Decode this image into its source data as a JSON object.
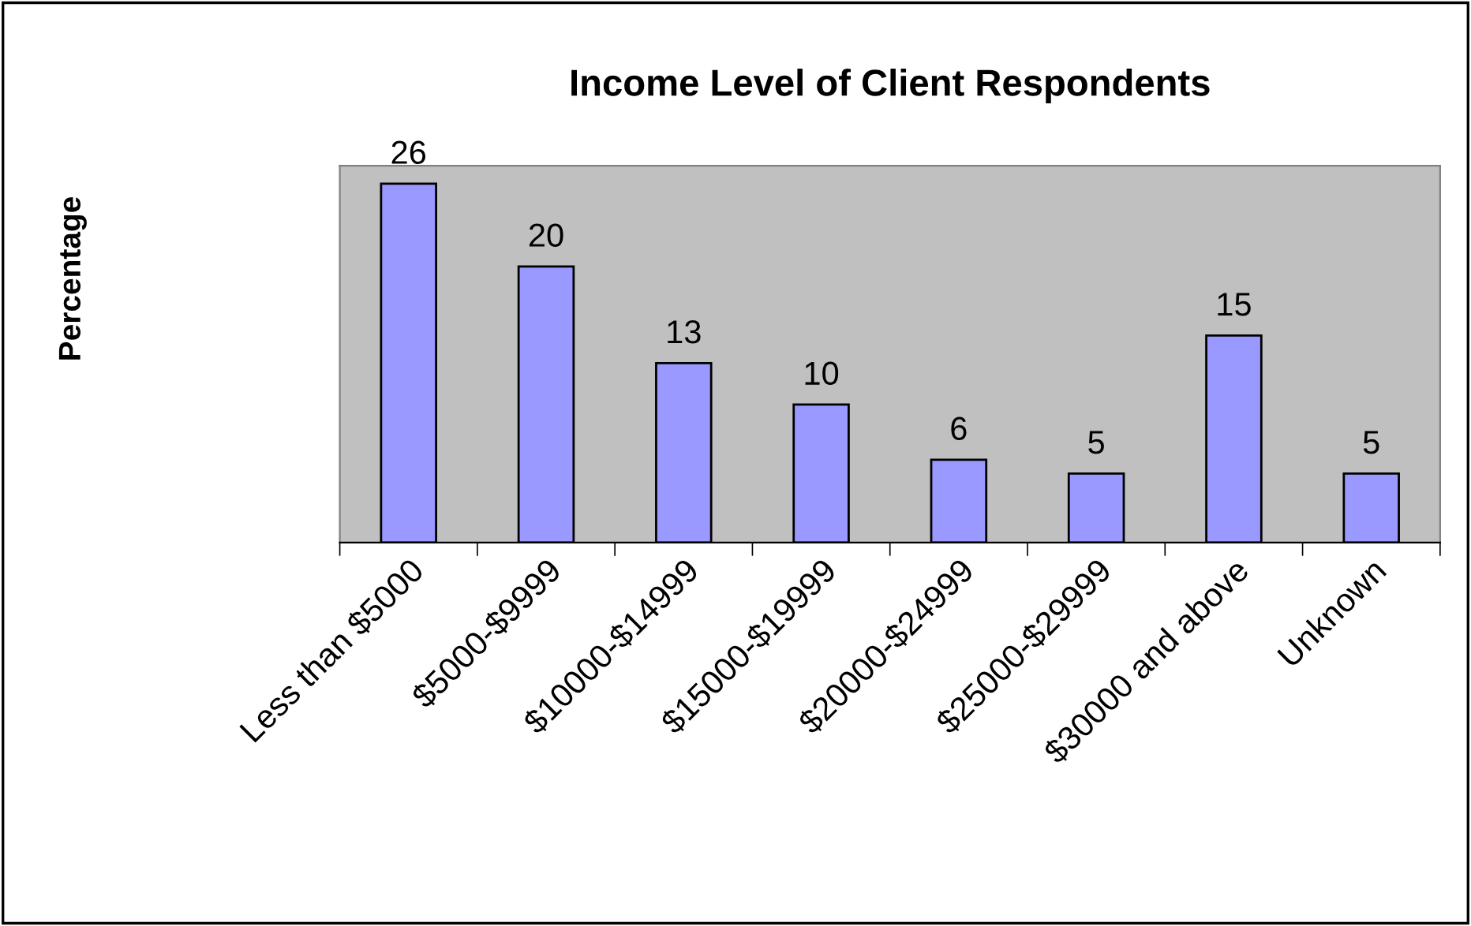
{
  "chart_data": {
    "type": "bar",
    "title": "Income Level of Client Respondents",
    "ylabel": "Percentage",
    "categories": [
      "Less than $5000",
      "$5000-$9999",
      "$10000-$14999",
      "$15000-$19999",
      "$20000-$24999",
      "$25000-$29999",
      "$30000 and above",
      "Unknown"
    ],
    "values": [
      26,
      20,
      13,
      10,
      6,
      5,
      15,
      5
    ],
    "color": "#9999ff",
    "data_labels": true,
    "grid": false,
    "legend": false,
    "tick_labels": "x"
  }
}
